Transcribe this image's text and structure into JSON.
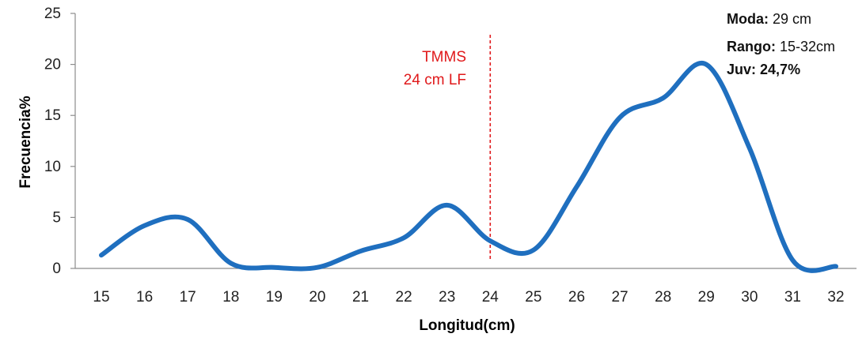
{
  "chart_data": {
    "type": "line",
    "title": "",
    "xlabel": "Longitud(cm)",
    "ylabel": "Frecuencia%",
    "x": [
      15,
      16,
      17,
      18,
      19,
      20,
      21,
      22,
      23,
      24,
      25,
      26,
      27,
      28,
      29,
      30,
      31,
      32
    ],
    "series": [
      {
        "values": [
          1.3,
          4.2,
          4.8,
          0.5,
          0.1,
          0.1,
          1.7,
          3.0,
          6.2,
          2.7,
          1.8,
          8.0,
          14.8,
          16.7,
          20.0,
          11.8,
          0.8,
          0.2
        ],
        "color": "#1f6fbf"
      }
    ],
    "xlim": [
      15,
      32
    ],
    "ylim": [
      0,
      25
    ],
    "y_ticks": [
      0,
      5,
      10,
      15,
      20,
      25
    ],
    "x_ticks": [
      15,
      16,
      17,
      18,
      19,
      20,
      21,
      22,
      23,
      24,
      25,
      26,
      27,
      28,
      29,
      30,
      31,
      32
    ],
    "grid": false,
    "smooth": true,
    "reference_line": {
      "x": 24,
      "style": "dashed",
      "color": "#e0191b",
      "label_line1": "TMMS",
      "label_line2": "24 cm LF"
    },
    "annotations": [
      {
        "bold": "Moda:",
        "text": " 29 cm"
      },
      {
        "bold": "Rango:",
        "text": " 15-32cm"
      },
      {
        "bold": "Juv:",
        "text": " ",
        "value_bold": "24,7%"
      }
    ]
  }
}
